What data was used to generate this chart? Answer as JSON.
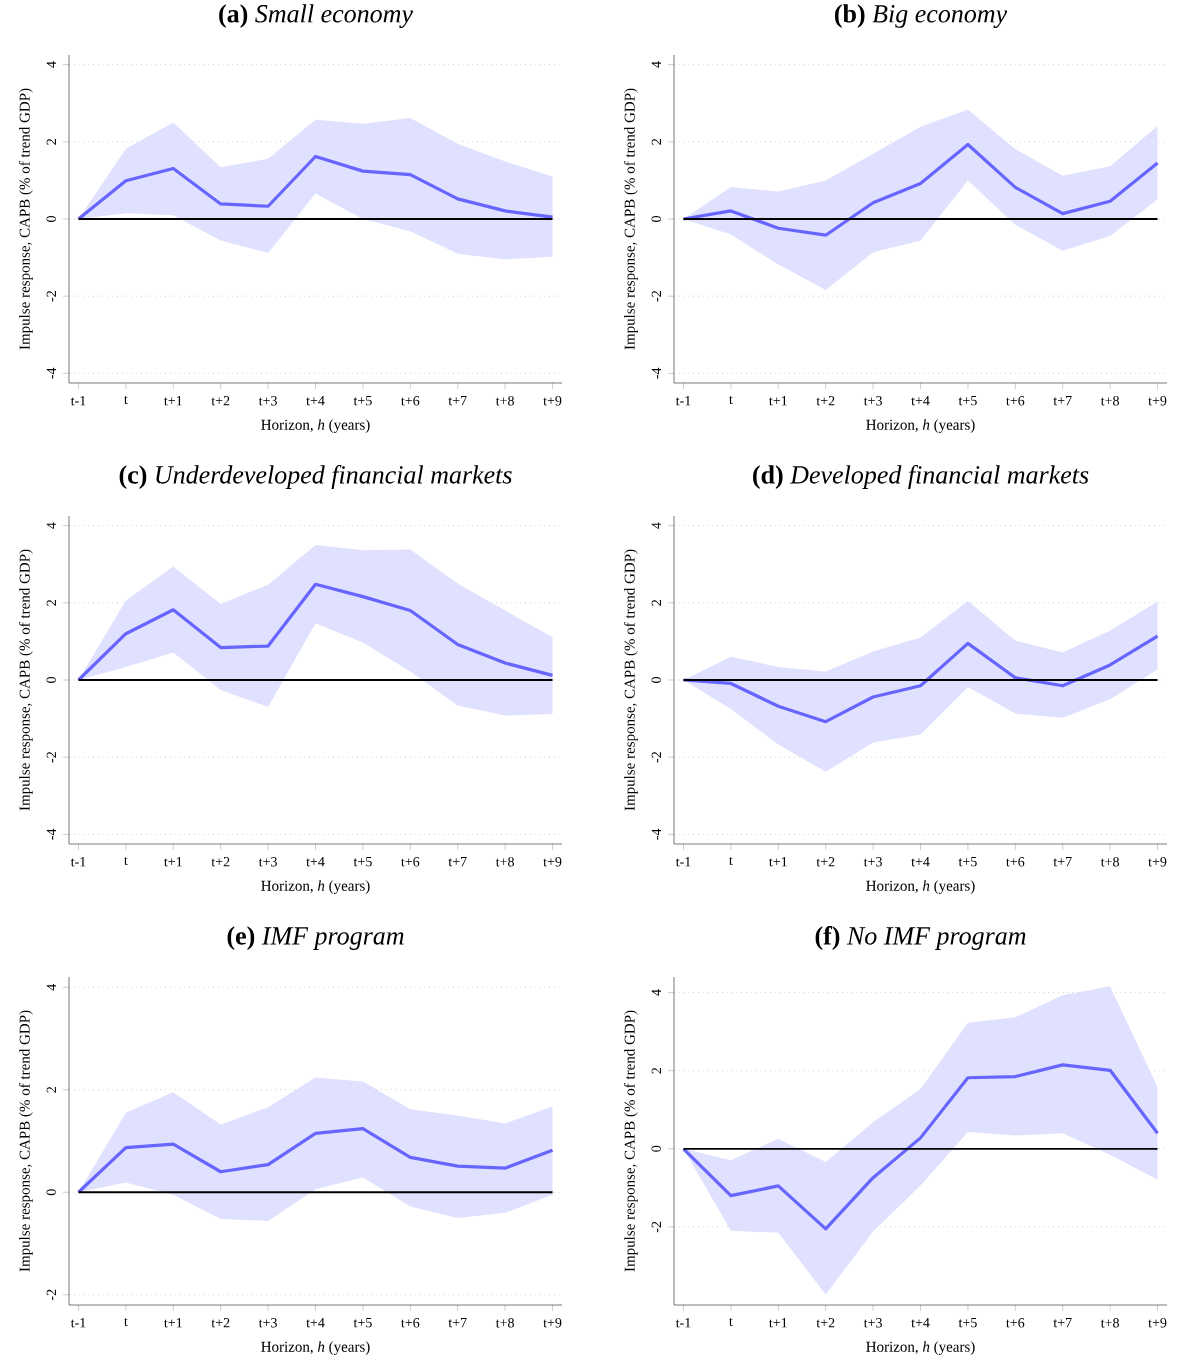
{
  "chart_data": [
    {
      "type": "line",
      "title": "**(a)**  *Small economy*",
      "xlabel": "Horizon, *h* (years)",
      "ylabel": "Impulse response, CAPB (% of trend GDP)",
      "categories": [
        "t-1",
        "t",
        "t+1",
        "t+2",
        "t+3",
        "t+4",
        "t+5",
        "t+6",
        "t+7",
        "t+8",
        "t+9"
      ],
      "ylim": [
        -4.25,
        4.25
      ],
      "yticks": [
        -4,
        -2,
        0,
        2,
        4
      ],
      "grid": "y",
      "ref_lines": [
        {
          "axis": "y",
          "value": 0,
          "color": "#000000"
        }
      ],
      "series": [
        {
          "color": "#6666ff",
          "values": [
            0,
            0.99,
            1.31,
            0.39,
            0.33,
            1.62,
            1.24,
            1.15,
            0.52,
            0.21,
            0.05
          ],
          "lower": [
            0,
            0.15,
            0.1,
            -0.56,
            -0.88,
            0.66,
            0.0,
            -0.32,
            -0.9,
            -1.05,
            -0.98
          ],
          "upper": [
            0,
            1.82,
            2.5,
            1.34,
            1.56,
            2.57,
            2.47,
            2.62,
            1.95,
            1.49,
            1.1
          ]
        }
      ]
    },
    {
      "type": "line",
      "title": "**(b)**  *Big economy*",
      "xlabel": "Horizon, *h* (years)",
      "ylabel": "Impulse response, CAPB (% of trend GDP)",
      "categories": [
        "t-1",
        "t",
        "t+1",
        "t+2",
        "t+3",
        "t+4",
        "t+5",
        "t+6",
        "t+7",
        "t+8",
        "t+9"
      ],
      "ylim": [
        -4.25,
        4.25
      ],
      "yticks": [
        -4,
        -2,
        0,
        2,
        4
      ],
      "grid": "y",
      "ref_lines": [
        {
          "axis": "y",
          "value": 0,
          "color": "#000000"
        }
      ],
      "series": [
        {
          "color": "#6666ff",
          "values": [
            0,
            0.21,
            -0.24,
            -0.42,
            0.42,
            0.92,
            1.93,
            0.82,
            0.14,
            0.46,
            1.45
          ],
          "lower": [
            0,
            -0.4,
            -1.18,
            -1.84,
            -0.86,
            -0.56,
            1.0,
            -0.15,
            -0.82,
            -0.44,
            0.51
          ],
          "upper": [
            0,
            0.83,
            0.71,
            1.0,
            1.69,
            2.39,
            2.84,
            1.81,
            1.12,
            1.37,
            2.41
          ]
        }
      ]
    },
    {
      "type": "line",
      "title": "**(c)**  *Underdeveloped financial markets*",
      "xlabel": "Horizon, *h* (years)",
      "ylabel": "Impulse response, CAPB (% of trend GDP)",
      "categories": [
        "t-1",
        "t",
        "t+1",
        "t+2",
        "t+3",
        "t+4",
        "t+5",
        "t+6",
        "t+7",
        "t+8",
        "t+9"
      ],
      "ylim": [
        -4.25,
        4.25
      ],
      "yticks": [
        -4,
        -2,
        0,
        2,
        4
      ],
      "grid": "y",
      "ref_lines": [
        {
          "axis": "y",
          "value": 0,
          "color": "#000000"
        }
      ],
      "series": [
        {
          "color": "#6666ff",
          "values": [
            0,
            1.2,
            1.82,
            0.84,
            0.88,
            2.48,
            2.16,
            1.8,
            0.92,
            0.44,
            0.12
          ],
          "lower": [
            0,
            0.34,
            0.71,
            -0.26,
            -0.7,
            1.47,
            0.97,
            0.22,
            -0.66,
            -0.92,
            -0.88
          ],
          "upper": [
            0,
            2.06,
            2.94,
            1.97,
            2.47,
            3.5,
            3.36,
            3.38,
            2.5,
            1.8,
            1.11
          ]
        }
      ]
    },
    {
      "type": "line",
      "title": "**(d)**  *Developed financial markets*",
      "xlabel": "Horizon, *h* (years)",
      "ylabel": "Impulse response, CAPB (% of trend GDP)",
      "categories": [
        "t-1",
        "t",
        "t+1",
        "t+2",
        "t+3",
        "t+4",
        "t+5",
        "t+6",
        "t+7",
        "t+8",
        "t+9"
      ],
      "ylim": [
        -4.25,
        4.25
      ],
      "yticks": [
        -4,
        -2,
        0,
        2,
        4
      ],
      "grid": "y",
      "ref_lines": [
        {
          "axis": "y",
          "value": 0,
          "color": "#000000"
        }
      ],
      "series": [
        {
          "color": "#6666ff",
          "values": [
            0,
            -0.09,
            -0.68,
            -1.08,
            -0.44,
            -0.15,
            0.95,
            0.06,
            -0.15,
            0.39,
            1.14
          ],
          "lower": [
            0,
            -0.75,
            -1.67,
            -2.38,
            -1.62,
            -1.41,
            -0.18,
            -0.87,
            -0.98,
            -0.5,
            0.27
          ],
          "upper": [
            0,
            0.6,
            0.34,
            0.22,
            0.74,
            1.1,
            2.05,
            1.02,
            0.71,
            1.28,
            2.03
          ]
        }
      ]
    },
    {
      "type": "line",
      "title": "**(e)**  *IMF program*",
      "xlabel": "Horizon, *h* (years)",
      "ylabel": "Impulse response, CAPB (% of trend GDP)",
      "categories": [
        "t-1",
        "t",
        "t+1",
        "t+2",
        "t+3",
        "t+4",
        "t+5",
        "t+6",
        "t+7",
        "t+8",
        "t+9"
      ],
      "ylim": [
        -2.2,
        4.2
      ],
      "yticks": [
        -2,
        0,
        2,
        4
      ],
      "grid": "y",
      "ref_lines": [
        {
          "axis": "y",
          "value": 0,
          "color": "#000000"
        }
      ],
      "series": [
        {
          "color": "#6666ff",
          "values": [
            0,
            0.87,
            0.94,
            0.4,
            0.54,
            1.15,
            1.24,
            0.68,
            0.51,
            0.47,
            0.82
          ],
          "lower": [
            0,
            0.19,
            -0.05,
            -0.52,
            -0.56,
            0.06,
            0.29,
            -0.28,
            -0.5,
            -0.4,
            -0.05
          ],
          "upper": [
            0,
            1.55,
            1.95,
            1.32,
            1.66,
            2.24,
            2.16,
            1.62,
            1.5,
            1.34,
            1.68
          ]
        }
      ]
    },
    {
      "type": "line",
      "title": "**(f)**  *No IMF program*",
      "xlabel": "Horizon, *h* (years)",
      "ylabel": "Impulse response, CAPB (% of trend GDP)",
      "categories": [
        "t-1",
        "t",
        "t+1",
        "t+2",
        "t+3",
        "t+4",
        "t+5",
        "t+6",
        "t+7",
        "t+8",
        "t+9"
      ],
      "ylim": [
        -4.0,
        4.4
      ],
      "yticks": [
        -2,
        0,
        2,
        4
      ],
      "grid": "y",
      "ref_lines": [
        {
          "axis": "y",
          "value": 0,
          "color": "#000000"
        }
      ],
      "series": [
        {
          "color": "#6666ff",
          "values": [
            0,
            -1.2,
            -0.95,
            -2.05,
            -0.74,
            0.28,
            1.82,
            1.85,
            2.15,
            2.01,
            0.4
          ],
          "lower": [
            0,
            -2.1,
            -2.15,
            -3.73,
            -2.12,
            -0.94,
            0.43,
            0.34,
            0.4,
            -0.15,
            -0.79
          ],
          "upper": [
            0,
            -0.29,
            0.26,
            -0.34,
            0.68,
            1.53,
            3.23,
            3.37,
            3.93,
            4.16,
            1.58
          ]
        }
      ]
    }
  ]
}
